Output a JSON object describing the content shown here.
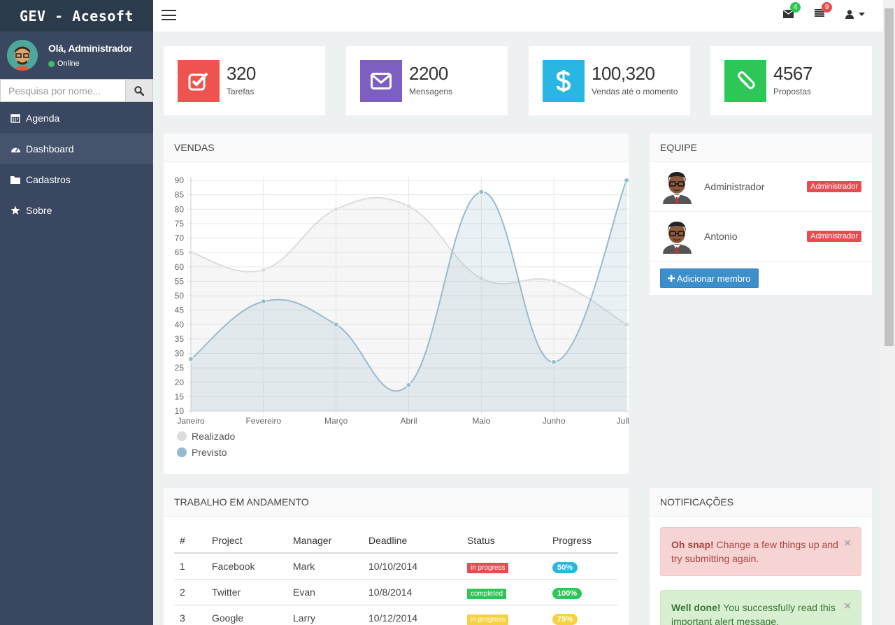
{
  "brand": "GEV - Acesoft",
  "user": {
    "greeting": "Olá, Administrador",
    "status": "Online"
  },
  "search": {
    "placeholder": "Pesquisa por nome..."
  },
  "menu": [
    {
      "label": "Agenda",
      "icon": "calendar-icon",
      "active": false
    },
    {
      "label": "Dashboard",
      "icon": "dashboard-icon",
      "active": true
    },
    {
      "label": "Cadastros",
      "icon": "folder-icon",
      "active": false
    },
    {
      "label": "Sobre",
      "icon": "star-icon",
      "active": false
    }
  ],
  "topbar": {
    "messages_count": "4",
    "tasks_count": "9"
  },
  "stats": [
    {
      "value": "320",
      "label": "Tarefas",
      "color": "#ef5350",
      "icon": "check-square-icon"
    },
    {
      "value": "2200",
      "label": "Mensagens",
      "color": "#7c5fc0",
      "icon": "envelope-icon"
    },
    {
      "value": "100,320",
      "label": "Vendas até o momento",
      "color": "#29b6e3",
      "icon": "dollar-icon"
    },
    {
      "value": "4567",
      "label": "Propostas",
      "color": "#2ec657",
      "icon": "paperclip-icon"
    }
  ],
  "sales_panel": {
    "title": "VENDAS"
  },
  "chart_data": {
    "type": "line",
    "categories": [
      "Janeiro",
      "Fevereiro",
      "Março",
      "Abril",
      "Maio",
      "Junho",
      "Julho"
    ],
    "series": [
      {
        "name": "Realizado",
        "values": [
          65,
          59,
          80,
          81,
          56,
          55,
          40
        ],
        "color": "#dcdcdc"
      },
      {
        "name": "Previsto",
        "values": [
          28,
          48,
          40,
          19,
          86,
          27,
          90
        ],
        "color": "#97bbcd"
      }
    ],
    "ylim": [
      10,
      90
    ],
    "yticks": [
      10,
      15,
      20,
      25,
      30,
      35,
      40,
      45,
      50,
      55,
      60,
      65,
      70,
      75,
      80,
      85,
      90
    ],
    "grid": true,
    "legend": "bottom-left"
  },
  "team_panel": {
    "title": "EQUIPE",
    "members": [
      {
        "name": "Administrador",
        "role": "Administrador"
      },
      {
        "name": "Antonio",
        "role": "Administrador"
      }
    ],
    "add_label": "Adicionar membro"
  },
  "work_panel": {
    "title": "TRABALHO EM ANDAMENTO",
    "headers": [
      "#",
      "Project",
      "Manager",
      "Deadline",
      "Status",
      "Progress"
    ],
    "rows": [
      {
        "num": "1",
        "project": "Facebook",
        "manager": "Mark",
        "deadline": "10/10/2014",
        "status": "in progress",
        "status_color": "#e84c51",
        "progress": "50%",
        "progress_color": "#29b6e3"
      },
      {
        "num": "2",
        "project": "Twitter",
        "manager": "Evan",
        "deadline": "10/8/2014",
        "status": "completed",
        "status_color": "#2ec657",
        "progress": "100%",
        "progress_color": "#2ec657"
      },
      {
        "num": "3",
        "project": "Google",
        "manager": "Larry",
        "deadline": "10/12/2014",
        "status": "in progress",
        "status_color": "#f7d23e",
        "progress": "75%",
        "progress_color": "#f7d23e"
      }
    ]
  },
  "notifications_panel": {
    "title": "NOTIFICAÇÕES",
    "alerts": [
      {
        "strong": "Oh snap!",
        "text": " Change a few things up and try submitting again."
      },
      {
        "strong": "Well done!",
        "text": " You successfully read this important alert message."
      }
    ]
  }
}
